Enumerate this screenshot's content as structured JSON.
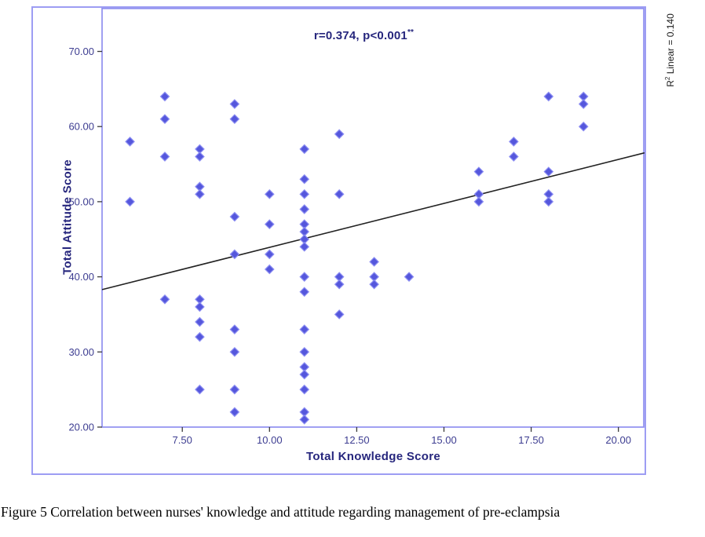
{
  "figure": {
    "annotation": {
      "text": "r=0.374, p<0.001",
      "sup": "**"
    },
    "r_squared": {
      "prefix": "R",
      "sup": "2",
      "rest": " Linear = 0.140"
    },
    "caption": "Figure 5 Correlation between nurses' knowledge and attitude regarding management of pre-eclampsia"
  },
  "chart_data": {
    "type": "scatter",
    "title": "",
    "xlabel": "Total Knowledge Score",
    "ylabel": "Total Attitude Score",
    "annotation": "r=0.374, p<0.001**",
    "r2_label": "R2 Linear = 0.140",
    "grid": false,
    "xlim": [
      5.2,
      20.75
    ],
    "ylim": [
      20,
      75.8
    ],
    "x_ticks": [
      7.5,
      10.0,
      12.5,
      15.0,
      17.5,
      20.0
    ],
    "x_tick_labels": [
      "7.50",
      "10.00",
      "12.50",
      "15.00",
      "17.50",
      "20.00"
    ],
    "y_ticks": [
      20,
      30,
      40,
      50,
      60,
      70
    ],
    "y_tick_labels": [
      "20.00",
      "30.00",
      "40.00",
      "50.00",
      "60.00",
      "70.00"
    ],
    "points": [
      [
        6,
        58
      ],
      [
        6,
        50
      ],
      [
        7,
        64
      ],
      [
        7,
        61
      ],
      [
        7,
        56
      ],
      [
        7,
        37
      ],
      [
        8,
        57
      ],
      [
        8,
        56
      ],
      [
        8,
        52
      ],
      [
        8,
        51
      ],
      [
        8,
        37
      ],
      [
        8,
        36
      ],
      [
        8,
        34
      ],
      [
        8,
        32
      ],
      [
        8,
        25
      ],
      [
        9,
        63
      ],
      [
        9,
        61
      ],
      [
        9,
        48
      ],
      [
        9,
        43
      ],
      [
        9,
        33
      ],
      [
        9,
        30
      ],
      [
        9,
        25
      ],
      [
        9,
        22
      ],
      [
        10,
        51
      ],
      [
        10,
        47
      ],
      [
        10,
        43
      ],
      [
        10,
        41
      ],
      [
        11,
        57
      ],
      [
        11,
        53
      ],
      [
        11,
        51
      ],
      [
        11,
        49
      ],
      [
        11,
        47
      ],
      [
        11,
        46
      ],
      [
        11,
        45
      ],
      [
        11,
        44
      ],
      [
        11,
        40
      ],
      [
        11,
        38
      ],
      [
        11,
        33
      ],
      [
        11,
        30
      ],
      [
        11,
        28
      ],
      [
        11,
        27
      ],
      [
        11,
        25
      ],
      [
        11,
        22
      ],
      [
        11,
        21
      ],
      [
        12,
        59
      ],
      [
        12,
        51
      ],
      [
        12,
        40
      ],
      [
        12,
        39
      ],
      [
        12,
        35
      ],
      [
        13,
        42
      ],
      [
        13,
        40
      ],
      [
        13,
        39
      ],
      [
        14,
        40
      ],
      [
        16,
        54
      ],
      [
        16,
        51
      ],
      [
        16,
        50
      ],
      [
        17,
        58
      ],
      [
        17,
        56
      ],
      [
        18,
        64
      ],
      [
        18,
        54
      ],
      [
        18,
        51
      ],
      [
        18,
        50
      ],
      [
        19,
        64
      ],
      [
        19,
        63
      ],
      [
        19,
        60
      ]
    ],
    "trendline": {
      "x1": 5.2,
      "y1": 38.3,
      "x2": 20.75,
      "y2": 56.5
    },
    "marker": {
      "shape": "diamond",
      "size": 11,
      "color": "#5557dc",
      "edge_color": "#8b8df2"
    },
    "colors": {
      "frame": "#8f90ef",
      "outer_border": "#9d9df3",
      "tick_mark": "#3a3a3a",
      "tick_label": "#3d3d91",
      "axis_title": "#26267d",
      "trend_line": "#222222"
    }
  }
}
